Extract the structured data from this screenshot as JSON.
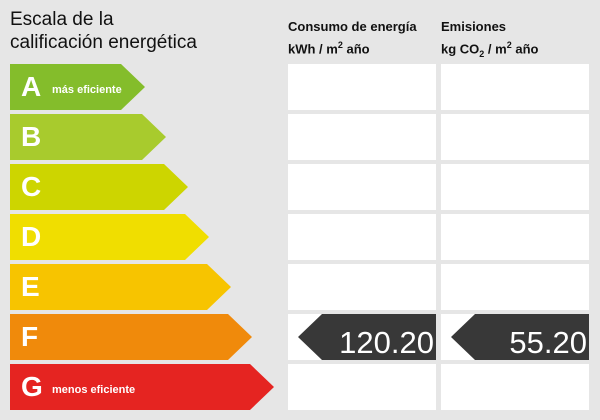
{
  "title": {
    "line1": "Escala de la",
    "line2": "calificación energética"
  },
  "columns": {
    "consumo": {
      "line1": "Consumo de energía",
      "line2_pre": "kWh / m",
      "line2_sup": "2",
      "line2_post": " año"
    },
    "emisiones": {
      "line1": "Emisiones",
      "line2_pre": "kg CO",
      "line2_sub": "2",
      "line2_post": " / m",
      "line2_sup": "2",
      "line2_post2": " año"
    }
  },
  "ratings": [
    {
      "letter": "A",
      "tag": "más eficiente",
      "color": "#84bd2b"
    },
    {
      "letter": "B",
      "tag": "",
      "color": "#a8cb2d"
    },
    {
      "letter": "C",
      "tag": "",
      "color": "#cdd500"
    },
    {
      "letter": "D",
      "tag": "",
      "color": "#f0de00"
    },
    {
      "letter": "E",
      "tag": "",
      "color": "#f7c400"
    },
    {
      "letter": "F",
      "tag": "",
      "color": "#f08a0b"
    },
    {
      "letter": "G",
      "tag": "menos eficiente",
      "color": "#e52421"
    }
  ],
  "result": {
    "rating": "F",
    "consumo_value": "120.20",
    "emisiones_value": "55.20",
    "marker_color": "#383838"
  }
}
